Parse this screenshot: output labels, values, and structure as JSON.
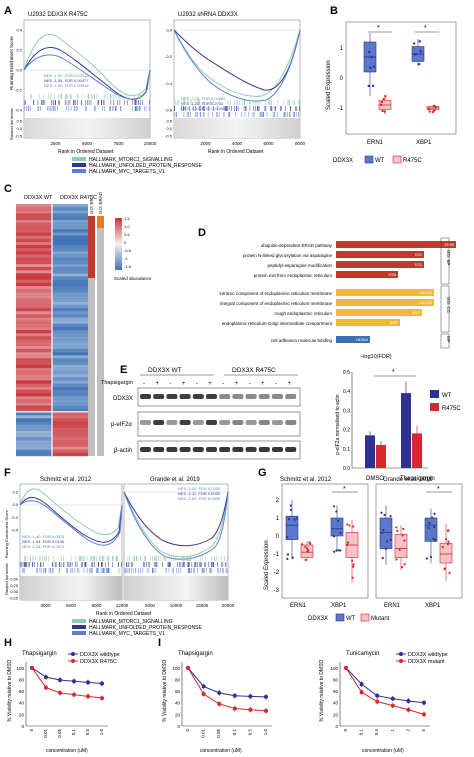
{
  "colors": {
    "mtorc1": "#8ccfb0",
    "upr": "#3b3390",
    "myc": "#5b7fd6",
    "wt": "#2e3192",
    "r475c": "#d6282e",
    "mutant": "#e88a96",
    "go_bp": "#c0392b",
    "go_cc": "#f0b93a",
    "go_mf": "#3a6fb3",
    "heat_hi": "#c8353c",
    "heat_lo": "#3f73b5"
  },
  "panel_A": {
    "label": "A",
    "left_title": "U2932 DDX3X R475C",
    "right_title": "U2932 shRNA DDX3X",
    "ylabel_top": "Running Enrichment Score",
    "ylabel_bottom": "Ranked list metric",
    "xlabel": "Rank in Ordered Dataset",
    "left_ticks_y": [
      "0.4",
      "0.2",
      "0.0",
      "-0.2",
      "-0.4"
    ],
    "left_ticks_x": [
      "2500",
      "5000",
      "7500",
      "10000"
    ],
    "left_bottom_ticks": [
      "0.5",
      "0.0",
      "-0.5"
    ],
    "left_nes": [
      "NES -1.59, FDR 0.03315",
      "NES -1.54, FDR 0.00477",
      "NES -1.60, FDR 0.00915"
    ],
    "right_ticks_y": [
      "0.0",
      "-0.2",
      "-0.4",
      "-0.6"
    ],
    "right_ticks_x": [
      "2000",
      "4000",
      "6000",
      "8000"
    ],
    "right_bottom_ticks": [
      "0.5",
      "0.0",
      "-0.5"
    ],
    "right_nes": [
      "NES -2.15, FDR 0.01885",
      "NES -1.20, FDR 0.2734",
      "NES -2.14, FDR 0.01885"
    ],
    "legend": [
      "HALLMARK_MTORC1_SIGNALLING",
      "HALLMARK_UNFOLDED_PROTEIN_RESPONSE",
      "HALLMARK_MYC_TARGETS_V1"
    ]
  },
  "panel_B": {
    "label": "B",
    "ylabel": "Scaled Expression",
    "yticks": [
      "1",
      "0",
      "-1"
    ],
    "groups": [
      "ERN1",
      "XBP1"
    ],
    "sig": [
      "*",
      "*"
    ],
    "legend_title": "DDX3X",
    "legend": [
      "WT",
      "R475C"
    ]
  },
  "panel_C": {
    "label": "C",
    "col_headers": [
      "DDX3X WT",
      "DDX3X R475C"
    ],
    "side_headers": [
      "GO: ER",
      "GO: ERAD"
    ],
    "scale_ticks": [
      "1.5",
      "1.0",
      "0.5",
      "0",
      "-0.5",
      "-1",
      "-1.5"
    ],
    "scale_title": "Scaled abundance"
  },
  "panel_D": {
    "label": "D",
    "terms": [
      "ubiquitin-dependent ERAD pathway",
      "protein N-linked glycosylation via asparagine",
      "peptidyl-asparagine modification",
      "protein exit from endoplasmic reticulum",
      "intrinsic component of endoplasmic reticulum membrane",
      "integral component of endoplasmic reticulum membrane",
      "rough endoplasmic reticulum",
      "endoplasmic reticulum-Golgi intermediate compartment",
      "cell adhesion molecule binding"
    ],
    "counts": [
      "12/65",
      "7/21",
      "7/21",
      "7/30",
      "16/124",
      "16/124",
      "9/57",
      "9/91",
      "18/304"
    ],
    "categories": [
      "GO: BP",
      "GO: CC",
      "MF"
    ],
    "xlabel": "−log10(FDR)"
  },
  "panel_E": {
    "label": "E",
    "group_headers": [
      "DDX3X WT",
      "DDX3X R475C"
    ],
    "treatment_label": "Thapsigargin",
    "lane_signs": [
      "-",
      "+",
      "-",
      "+",
      "-",
      "+",
      "-",
      "+",
      "-",
      "+",
      "-",
      "+"
    ],
    "blot_labels": [
      "DDX3X",
      "p-eIF2α",
      "β-actin"
    ],
    "ylabel": "p-eIF2a normalised to actin",
    "yticks": [
      "0.5",
      "0.4",
      "0.3",
      "0.2",
      "0.1",
      "0.0"
    ],
    "xticks": [
      "DMSO",
      "Thapsigargin"
    ],
    "sig": "*",
    "legend": [
      "WT",
      "R475C"
    ]
  },
  "panel_F": {
    "label": "F",
    "left_title": "Schmitz et al. 2012",
    "right_title": "Grande et al. 2019",
    "ylabel_top": "Running Enrichment Score",
    "ylabel_bottom": "Ranked list metric",
    "xlabel": "Rank in Ordered Dataset",
    "left_ticks_y": [
      "0.2",
      "0.0",
      "-0.2",
      "-0.4"
    ],
    "left_ticks_x": [
      "3000",
      "6000",
      "9000",
      "12000"
    ],
    "left_bottom_ticks": [
      "0.50",
      "0.25",
      "0.00",
      "-0.25"
    ],
    "left_nes": [
      "NES -1.40, FDR 0.0073",
      "NES -1.54, FDR 0.0140",
      "NES -1.44, FDR 0.0073"
    ],
    "right_ticks_x": [
      "5000",
      "10000",
      "15000",
      "20000"
    ],
    "right_nes": [
      "NES -2.00, FDR 0.0055",
      "NES -2.11, FDR 0.0055",
      "NES -2.82, FDR 0.0055"
    ],
    "legend": [
      "HALLMARK_MTORC1_SIGNALLING",
      "HALLMARK_UNFOLDED_PROTEIN_RESPONSE",
      "HALLMARK_MYC_TARGETS_V1"
    ]
  },
  "panel_G": {
    "label": "G",
    "left_title": "Schmitz et al. 2012",
    "right_title": "Grande et al. 2019",
    "ylabel": "Scaled Expression",
    "yticks": [
      "2",
      "1",
      "0",
      "-1",
      "-2",
      "-3"
    ],
    "groups": [
      "ERN1",
      "XBP1"
    ],
    "sig": [
      "*",
      "*"
    ],
    "legend_title": "DDX3X",
    "legend": [
      "WT",
      "Mutant"
    ]
  },
  "panel_H": {
    "label": "H",
    "title": "Thapsigargin",
    "ylabel": "% Viability relative to DMSO",
    "xlabel": "concentration (uM)",
    "yticks": [
      "100",
      "80",
      "60",
      "40",
      "20",
      "0"
    ],
    "xticks": [
      "0",
      "0.01",
      "0.05",
      "0.1",
      "0.5",
      "1.0"
    ],
    "legend": [
      "DDX3X wildtype",
      "DDX3X R475C"
    ]
  },
  "panel_I": {
    "label": "I",
    "left_title": "Thapsigargin",
    "right_title": "Tunicamycin",
    "ylabel": "% Viability relative to DMSO",
    "xlabel": "concentration (uM)",
    "yticks": [
      "100",
      "80",
      "60",
      "40",
      "20",
      "0"
    ],
    "left_xticks": [
      "0",
      "0.01",
      "0.05",
      "0.1",
      "0.5",
      "1.0"
    ],
    "right_xticks": [
      "0",
      "0.1",
      "0.5",
      "1",
      "2",
      "5"
    ],
    "legend": [
      "DDX3X wildtype",
      "DDX3X mutant"
    ]
  },
  "chart_data": [
    {
      "type": "bar",
      "title": "",
      "categories": [
        "DMSO",
        "Thapsigargin"
      ],
      "series": [
        {
          "name": "WT",
          "values": [
            0.17,
            0.39
          ]
        },
        {
          "name": "R475C",
          "values": [
            0.12,
            0.18
          ]
        }
      ],
      "ylabel": "p-eIF2a normalised to actin",
      "ylim": [
        0,
        0.5
      ]
    },
    {
      "type": "line",
      "title": "Thapsigargin",
      "x": [
        "0",
        "0.01",
        "0.05",
        "0.1",
        "0.5",
        "1.0"
      ],
      "series": [
        {
          "name": "DDX3X wildtype",
          "values": [
            100,
            84,
            79,
            77,
            75,
            73
          ]
        },
        {
          "name": "DDX3X R475C",
          "values": [
            100,
            66,
            57,
            54,
            51,
            48
          ]
        }
      ],
      "ylabel": "% Viability relative to DMSO",
      "xlabel": "concentration (uM)",
      "ylim": [
        0,
        110
      ]
    },
    {
      "type": "line",
      "title": "Thapsigargin",
      "x": [
        "0",
        "0.01",
        "0.05",
        "0.1",
        "0.5",
        "1.0"
      ],
      "series": [
        {
          "name": "DDX3X wildtype",
          "values": [
            100,
            68,
            57,
            52,
            51,
            50
          ]
        },
        {
          "name": "DDX3X mutant",
          "values": [
            100,
            55,
            38,
            30,
            28,
            26
          ]
        }
      ],
      "ylabel": "% Viability relative to DMSO",
      "xlabel": "concentration (uM)",
      "ylim": [
        0,
        110
      ]
    },
    {
      "type": "line",
      "title": "Tunicamycin",
      "x": [
        "0",
        "0.1",
        "0.5",
        "1",
        "2",
        "5"
      ],
      "series": [
        {
          "name": "DDX3X wildtype",
          "values": [
            100,
            72,
            52,
            47,
            43,
            40
          ]
        },
        {
          "name": "DDX3X mutant",
          "values": [
            100,
            58,
            42,
            35,
            28,
            20
          ]
        }
      ],
      "ylabel": "% Viability relative to DMSO",
      "xlabel": "concentration (uM)",
      "ylim": [
        0,
        110
      ]
    }
  ]
}
